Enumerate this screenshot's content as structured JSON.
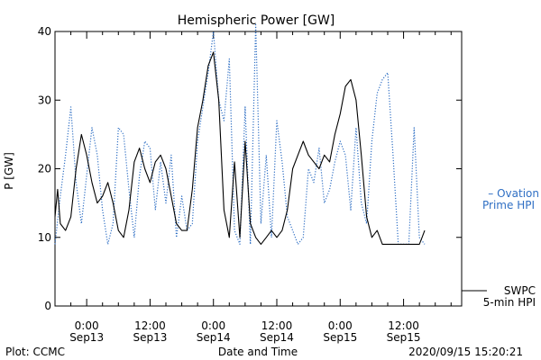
{
  "chart_data": {
    "type": "line",
    "title": "Hemispheric Power [GW]",
    "ylabel": "P [GW]",
    "xlabel": "Date and Time",
    "ylim": [
      0,
      40
    ],
    "yticks": [
      0,
      10,
      20,
      30,
      40
    ],
    "xlim": [
      "2020-09-12 18:00",
      "2020-09-15 23:00"
    ],
    "xticks": [
      {
        "t": "2020-09-13 00:00",
        "line1": "0:00",
        "line2": "Sep13"
      },
      {
        "t": "2020-09-13 12:00",
        "line1": "12:00",
        "line2": "Sep13"
      },
      {
        "t": "2020-09-14 00:00",
        "line1": "0:00",
        "line2": "Sep14"
      },
      {
        "t": "2020-09-14 12:00",
        "line1": "12:00",
        "line2": "Sep14"
      },
      {
        "t": "2020-09-15 00:00",
        "line1": "0:00",
        "line2": "Sep15"
      },
      {
        "t": "2020-09-15 12:00",
        "line1": "12:00",
        "line2": "Sep15"
      }
    ],
    "series": [
      {
        "name": "Ovation Prime HPI",
        "legend_line1": "– Ovation",
        "legend_line2": "Prime HPI",
        "style": "dotted",
        "color": "#2f6fc4",
        "t": [
          "2020-09-12 18:00",
          "2020-09-12 19:00",
          "2020-09-12 20:00",
          "2020-09-12 21:00",
          "2020-09-12 22:00",
          "2020-09-12 23:00",
          "2020-09-13 00:00",
          "2020-09-13 01:00",
          "2020-09-13 02:00",
          "2020-09-13 03:00",
          "2020-09-13 04:00",
          "2020-09-13 05:00",
          "2020-09-13 06:00",
          "2020-09-13 07:00",
          "2020-09-13 08:00",
          "2020-09-13 09:00",
          "2020-09-13 10:00",
          "2020-09-13 11:00",
          "2020-09-13 12:00",
          "2020-09-13 13:00",
          "2020-09-13 14:00",
          "2020-09-13 15:00",
          "2020-09-13 16:00",
          "2020-09-13 17:00",
          "2020-09-13 18:00",
          "2020-09-13 19:00",
          "2020-09-13 20:00",
          "2020-09-13 21:00",
          "2020-09-13 22:00",
          "2020-09-13 23:00",
          "2020-09-14 00:00",
          "2020-09-14 01:00",
          "2020-09-14 02:00",
          "2020-09-14 03:00",
          "2020-09-14 04:00",
          "2020-09-14 05:00",
          "2020-09-14 06:00",
          "2020-09-14 07:00",
          "2020-09-14 08:00",
          "2020-09-14 09:00",
          "2020-09-14 10:00",
          "2020-09-14 11:00",
          "2020-09-14 12:00",
          "2020-09-14 13:00",
          "2020-09-14 14:00",
          "2020-09-14 15:00",
          "2020-09-14 16:00",
          "2020-09-14 17:00",
          "2020-09-14 18:00",
          "2020-09-14 19:00",
          "2020-09-14 20:00",
          "2020-09-14 21:00",
          "2020-09-14 22:00",
          "2020-09-14 23:00",
          "2020-09-15 00:00",
          "2020-09-15 01:00",
          "2020-09-15 02:00",
          "2020-09-15 03:00",
          "2020-09-15 04:00",
          "2020-09-15 05:00",
          "2020-09-15 06:00",
          "2020-09-15 07:00",
          "2020-09-15 08:00",
          "2020-09-15 09:00",
          "2020-09-15 10:00",
          "2020-09-15 11:00",
          "2020-09-15 12:00",
          "2020-09-15 13:00",
          "2020-09-15 14:00",
          "2020-09-15 15:00",
          "2020-09-15 16:00"
        ],
        "values": [
          9,
          16,
          22,
          29,
          18,
          12,
          19,
          26,
          22,
          14,
          9,
          12,
          26,
          25,
          17,
          10,
          19,
          24,
          23,
          14,
          21,
          15,
          22,
          10,
          16,
          11,
          12,
          24,
          29,
          34,
          40,
          30,
          27,
          36,
          11,
          9,
          29,
          9,
          41,
          12,
          22,
          10,
          27,
          21,
          13,
          11,
          9,
          10,
          20,
          18,
          23,
          15,
          17,
          21,
          24,
          22,
          14,
          26,
          15,
          12,
          24,
          31,
          33,
          34,
          22,
          9,
          9,
          9,
          26,
          10,
          9
        ]
      },
      {
        "name": "SWPC 5-min HPI",
        "legend_line1": "SWPC",
        "legend_line2": "5-min HPI",
        "style": "solid",
        "color": "#000000",
        "t": [
          "2020-09-12 18:00",
          "2020-09-12 18:30",
          "2020-09-12 19:00",
          "2020-09-12 20:00",
          "2020-09-12 21:00",
          "2020-09-12 22:00",
          "2020-09-12 23:00",
          "2020-09-13 00:00",
          "2020-09-13 01:00",
          "2020-09-13 02:00",
          "2020-09-13 03:00",
          "2020-09-13 04:00",
          "2020-09-13 05:00",
          "2020-09-13 06:00",
          "2020-09-13 07:00",
          "2020-09-13 08:00",
          "2020-09-13 09:00",
          "2020-09-13 10:00",
          "2020-09-13 11:00",
          "2020-09-13 12:00",
          "2020-09-13 13:00",
          "2020-09-13 14:00",
          "2020-09-13 15:00",
          "2020-09-13 16:00",
          "2020-09-13 17:00",
          "2020-09-13 18:00",
          "2020-09-13 19:00",
          "2020-09-13 20:00",
          "2020-09-13 21:00",
          "2020-09-13 22:00",
          "2020-09-13 23:00",
          "2020-09-14 00:00",
          "2020-09-14 01:00",
          "2020-09-14 02:00",
          "2020-09-14 03:00",
          "2020-09-14 04:00",
          "2020-09-14 05:00",
          "2020-09-14 06:00",
          "2020-09-14 07:00",
          "2020-09-14 08:00",
          "2020-09-14 09:00",
          "2020-09-14 10:00",
          "2020-09-14 11:00",
          "2020-09-14 12:00",
          "2020-09-14 13:00",
          "2020-09-14 14:00",
          "2020-09-14 15:00",
          "2020-09-14 16:00",
          "2020-09-14 17:00",
          "2020-09-14 18:00",
          "2020-09-14 19:00",
          "2020-09-14 20:00",
          "2020-09-14 21:00",
          "2020-09-14 22:00",
          "2020-09-14 23:00",
          "2020-09-15 00:00",
          "2020-09-15 01:00",
          "2020-09-15 02:00",
          "2020-09-15 03:00",
          "2020-09-15 04:00",
          "2020-09-15 05:00",
          "2020-09-15 06:00",
          "2020-09-15 07:00",
          "2020-09-15 08:00",
          "2020-09-15 09:00",
          "2020-09-15 10:00",
          "2020-09-15 11:00",
          "2020-09-15 12:00",
          "2020-09-15 13:00",
          "2020-09-15 14:00",
          "2020-09-15 15:00",
          "2020-09-15 15:30",
          "2020-09-15 16:00"
        ],
        "values": [
          13,
          17,
          12,
          11,
          13,
          20,
          25,
          22,
          18,
          15,
          16,
          18,
          15,
          11,
          10,
          14,
          21,
          23,
          20,
          18,
          21,
          22,
          20,
          16,
          12,
          11,
          11,
          17,
          26,
          30,
          35,
          37,
          30,
          14,
          10,
          21,
          10,
          24,
          12,
          10,
          9,
          10,
          11,
          10,
          11,
          14,
          20,
          22,
          24,
          22,
          21,
          20,
          22,
          21,
          25,
          28,
          32,
          33,
          30,
          22,
          13,
          10,
          11,
          9,
          9,
          9,
          9,
          9,
          9,
          9,
          9,
          10,
          11
        ]
      }
    ],
    "footer": {
      "left": "Plot: CCMC",
      "center": "Date and Time",
      "right": "2020/09/15 15:20:21"
    }
  }
}
